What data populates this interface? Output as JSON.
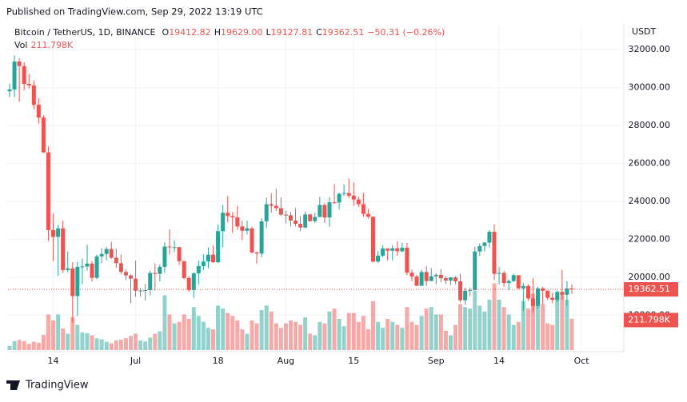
{
  "chart_data": {
    "type": "candlestick",
    "published": "Published on TradingView.com, Sep 29, 2022 13:19 UTC",
    "symbol": "Bitcoin / TetherUS, 1D, BINANCE",
    "ohlc": [
      [
        "O",
        "19412.82"
      ],
      [
        "H",
        "19629.00"
      ],
      [
        "L",
        "19127.81"
      ],
      [
        "C",
        "19362.51"
      ]
    ],
    "change": "−50.31 (−0.26%)",
    "vol_name": "Vol",
    "vol_value": "211.798K",
    "currency": "USDT",
    "footer": "TradingView",
    "last_price_label": "19362.51",
    "last_volume_label": "211.798K",
    "up_color": "#26a69a",
    "down_color": "#ef5350",
    "grid": true,
    "x": [
      "Jun 5",
      "Jun 6",
      "Jun 7",
      "Jun 8",
      "Jun 9",
      "Jun 10",
      "Jun 11",
      "Jun 12",
      "Jun 13",
      "Jun 14",
      "Jun 15",
      "Jun 16",
      "Jun 17",
      "Jun 18",
      "Jun 19",
      "Jun 20",
      "Jun 21",
      "Jun 22",
      "Jun 23",
      "Jun 24",
      "Jun 25",
      "Jun 26",
      "Jun 27",
      "Jun 28",
      "Jun 29",
      "Jun 30",
      "Jul 1",
      "Jul 2",
      "Jul 3",
      "Jul 4",
      "Jul 5",
      "Jul 6",
      "Jul 7",
      "Jul 8",
      "Jul 9",
      "Jul 10",
      "Jul 11",
      "Jul 12",
      "Jul 13",
      "Jul 14",
      "Jul 15",
      "Jul 16",
      "Jul 17",
      "Jul 18",
      "Jul 19",
      "Jul 20",
      "Jul 21",
      "Jul 22",
      "Jul 23",
      "Jul 24",
      "Jul 25",
      "Jul 26",
      "Jul 27",
      "Jul 28",
      "Jul 29",
      "Jul 30",
      "Jul 31",
      "Aug 1",
      "Aug 2",
      "Aug 3",
      "Aug 4",
      "Aug 5",
      "Aug 6",
      "Aug 7",
      "Aug 8",
      "Aug 9",
      "Aug 10",
      "Aug 11",
      "Aug 12",
      "Aug 13",
      "Aug 14",
      "Aug 15",
      "Aug 16",
      "Aug 17",
      "Aug 18",
      "Aug 19",
      "Aug 20",
      "Aug 21",
      "Aug 22",
      "Aug 23",
      "Aug 24",
      "Aug 25",
      "Aug 26",
      "Aug 27",
      "Aug 28",
      "Aug 29",
      "Aug 30",
      "Aug 31",
      "Sep 1",
      "Sep 2",
      "Sep 3",
      "Sep 4",
      "Sep 5",
      "Sep 6",
      "Sep 7",
      "Sep 8",
      "Sep 9",
      "Sep 10",
      "Sep 11",
      "Sep 12",
      "Sep 13",
      "Sep 14",
      "Sep 15",
      "Sep 16",
      "Sep 17",
      "Sep 18",
      "Sep 19",
      "Sep 20",
      "Sep 21",
      "Sep 22",
      "Sep 23",
      "Sep 24",
      "Sep 25",
      "Sep 26",
      "Sep 27",
      "Sep 28",
      "Sep 29"
    ],
    "open": [
      29800,
      29900,
      31370,
      31130,
      30190,
      30110,
      29090,
      28420,
      26580,
      22490,
      22130,
      22580,
      20380,
      20470,
      19010,
      20550,
      20570,
      20720,
      19970,
      21100,
      21230,
      21490,
      21030,
      20740,
      20280,
      20100,
      19930,
      19290,
      19300,
      19320,
      20230,
      20180,
      20550,
      21620,
      21590,
      21590,
      20850,
      19960,
      19330,
      20210,
      20590,
      20830,
      21190,
      20790,
      22430,
      23400,
      23230,
      23160,
      22680,
      22450,
      22580,
      21310,
      21250,
      22950,
      23850,
      23770,
      23640,
      23300,
      23270,
      22990,
      22820,
      22620,
      23310,
      22960,
      23180,
      23810,
      23150,
      23950,
      23940,
      24400,
      24440,
      24300,
      24100,
      23850,
      23340,
      23190,
      20830,
      21140,
      21520,
      21400,
      21530,
      21370,
      21560,
      20240,
      20040,
      19550,
      20280,
      19800,
      20050,
      20130,
      19950,
      19830,
      19990,
      19790,
      18790,
      19290,
      19320,
      21360,
      21650,
      21830,
      22400,
      20180,
      20230,
      19700,
      19800,
      20110,
      19420,
      19540,
      18880,
      18490,
      19410,
      19290,
      18920,
      18810,
      19230,
      19080,
      19412.82
    ],
    "high": [
      30200,
      31700,
      31550,
      31330,
      30700,
      30380,
      29440,
      28540,
      26900,
      23360,
      22760,
      22980,
      21360,
      20790,
      20820,
      21000,
      21720,
      20870,
      21200,
      21530,
      21610,
      21870,
      21520,
      21200,
      20400,
      20160,
      20880,
      19440,
      19650,
      20350,
      20730,
      20680,
      21840,
      22530,
      21950,
      21600,
      20870,
      20060,
      20260,
      20880,
      21200,
      21570,
      21680,
      22780,
      23800,
      24280,
      23440,
      23760,
      22990,
      23000,
      22660,
      21350,
      23110,
      24200,
      24440,
      24670,
      24200,
      23510,
      23450,
      23650,
      23220,
      23460,
      23350,
      23400,
      24240,
      23930,
      24230,
      24920,
      24460,
      24890,
      25210,
      25000,
      24250,
      24450,
      23600,
      23200,
      21380,
      21690,
      21520,
      21680,
      21900,
      21820,
      21820,
      20400,
      20140,
      20400,
      20580,
      20490,
      20200,
      20440,
      20060,
      20000,
      20060,
      20180,
      19460,
      19460,
      21600,
      21790,
      21860,
      22490,
      22800,
      20540,
      20330,
      19900,
      20190,
      20110,
      19690,
      19630,
      19960,
      19500,
      19500,
      19310,
      19180,
      19320,
      20380,
      19790,
      19629
    ],
    "low": [
      29500,
      29500,
      29250,
      29850,
      29950,
      28850,
      28100,
      26560,
      21930,
      20850,
      20070,
      20230,
      20250,
      17620,
      17960,
      19640,
      20350,
      19770,
      19890,
      20740,
      20900,
      20960,
      20510,
      20160,
      19850,
      18630,
      18970,
      18980,
      18780,
      19050,
      19300,
      19770,
      20240,
      21190,
      21320,
      20650,
      19900,
      19240,
      18910,
      19620,
      20380,
      20480,
      20760,
      20760,
      21580,
      22900,
      22340,
      22500,
      21950,
      22260,
      21250,
      20710,
      21040,
      22590,
      23410,
      23500,
      23230,
      22850,
      22670,
      22690,
      22430,
      22590,
      22920,
      22850,
      23160,
      22860,
      22660,
      23860,
      23580,
      24290,
      24180,
      23770,
      23700,
      23180,
      23100,
      20780,
      20760,
      21060,
      20890,
      20890,
      21140,
      21310,
      20110,
      19800,
      19550,
      19550,
      19540,
      19800,
      19650,
      19750,
      19650,
      19590,
      19640,
      18680,
      18540,
      19000,
      19300,
      21120,
      21350,
      21560,
      19860,
      19620,
      19500,
      19320,
      19750,
      19380,
      18230,
      18760,
      18130,
      18360,
      18560,
      18810,
      18630,
      18690,
      18820,
      18470,
      19127.81
    ],
    "close": [
      29900,
      31370,
      31130,
      30190,
      30110,
      29090,
      28420,
      26580,
      22490,
      22130,
      22580,
      20380,
      20470,
      19010,
      20550,
      20570,
      20720,
      19970,
      21100,
      21230,
      21490,
      21030,
      20740,
      20280,
      20100,
      19930,
      19290,
      19300,
      19320,
      20230,
      20180,
      20550,
      21620,
      21590,
      21590,
      20850,
      19960,
      19330,
      20210,
      20590,
      20830,
      21190,
      20790,
      22430,
      23400,
      23230,
      23160,
      22680,
      22450,
      22580,
      21310,
      21250,
      22950,
      23850,
      23770,
      23640,
      23300,
      23270,
      22990,
      22820,
      22620,
      23310,
      22960,
      23180,
      23810,
      23150,
      23950,
      23940,
      24400,
      24440,
      24300,
      24100,
      23850,
      23340,
      23190,
      20830,
      21140,
      21520,
      21400,
      21530,
      21370,
      21560,
      20240,
      20040,
      19550,
      20280,
      19800,
      20050,
      20130,
      19950,
      19830,
      19990,
      19790,
      18790,
      19290,
      19320,
      21360,
      21650,
      21830,
      22400,
      20180,
      20230,
      19700,
      19800,
      20110,
      19420,
      19540,
      18880,
      18490,
      19410,
      19290,
      18920,
      18810,
      19230,
      19080,
      19412.82,
      19362.51
    ],
    "volume": [
      28,
      60,
      68,
      60,
      42,
      56,
      49,
      102,
      240,
      200,
      240,
      146,
      110,
      222,
      170,
      118,
      114,
      100,
      80,
      72,
      56,
      46,
      64,
      70,
      80,
      96,
      110,
      64,
      58,
      84,
      110,
      126,
      370,
      240,
      180,
      190,
      240,
      210,
      290,
      230,
      190,
      150,
      140,
      300,
      280,
      250,
      230,
      200,
      140,
      110,
      200,
      180,
      270,
      300,
      260,
      180,
      150,
      180,
      200,
      190,
      170,
      220,
      110,
      100,
      190,
      180,
      260,
      280,
      210,
      160,
      250,
      250,
      190,
      230,
      140,
      330,
      190,
      150,
      210,
      190,
      170,
      150,
      290,
      190,
      170,
      230,
      280,
      290,
      240,
      240,
      130,
      100,
      170,
      310,
      290,
      280,
      400,
      300,
      260,
      340,
      450,
      340,
      290,
      240,
      170,
      190,
      330,
      280,
      380,
      350,
      310,
      180,
      170,
      340,
      390,
      340,
      211.798
    ],
    "ylim": [
      16080,
      33350
    ],
    "volume_ylim": [
      0,
      2200
    ],
    "yticks": [
      {
        "value": 18000,
        "label": "18000.00"
      },
      {
        "value": 20000,
        "label": "20000.00"
      },
      {
        "value": 22000,
        "label": "22000.00"
      },
      {
        "value": 24000,
        "label": "24000.00"
      },
      {
        "value": 26000,
        "label": "26000.00"
      },
      {
        "value": 28000,
        "label": "28000.00"
      },
      {
        "value": 30000,
        "label": "30000.00"
      },
      {
        "value": 32000,
        "label": "32000.00"
      }
    ],
    "xticks": [
      {
        "value": "Jun 14",
        "label": "14"
      },
      {
        "value": "Jul 1",
        "label": "Jul"
      },
      {
        "value": "Jul 18",
        "label": "18"
      },
      {
        "value": "Aug 1",
        "label": "Aug"
      },
      {
        "value": "Aug 15",
        "label": "15"
      },
      {
        "value": "Sep 1",
        "label": "Sep"
      },
      {
        "value": "Sep 14",
        "label": "14"
      },
      {
        "value": "Oct 1",
        "label": "Oct"
      }
    ]
  }
}
